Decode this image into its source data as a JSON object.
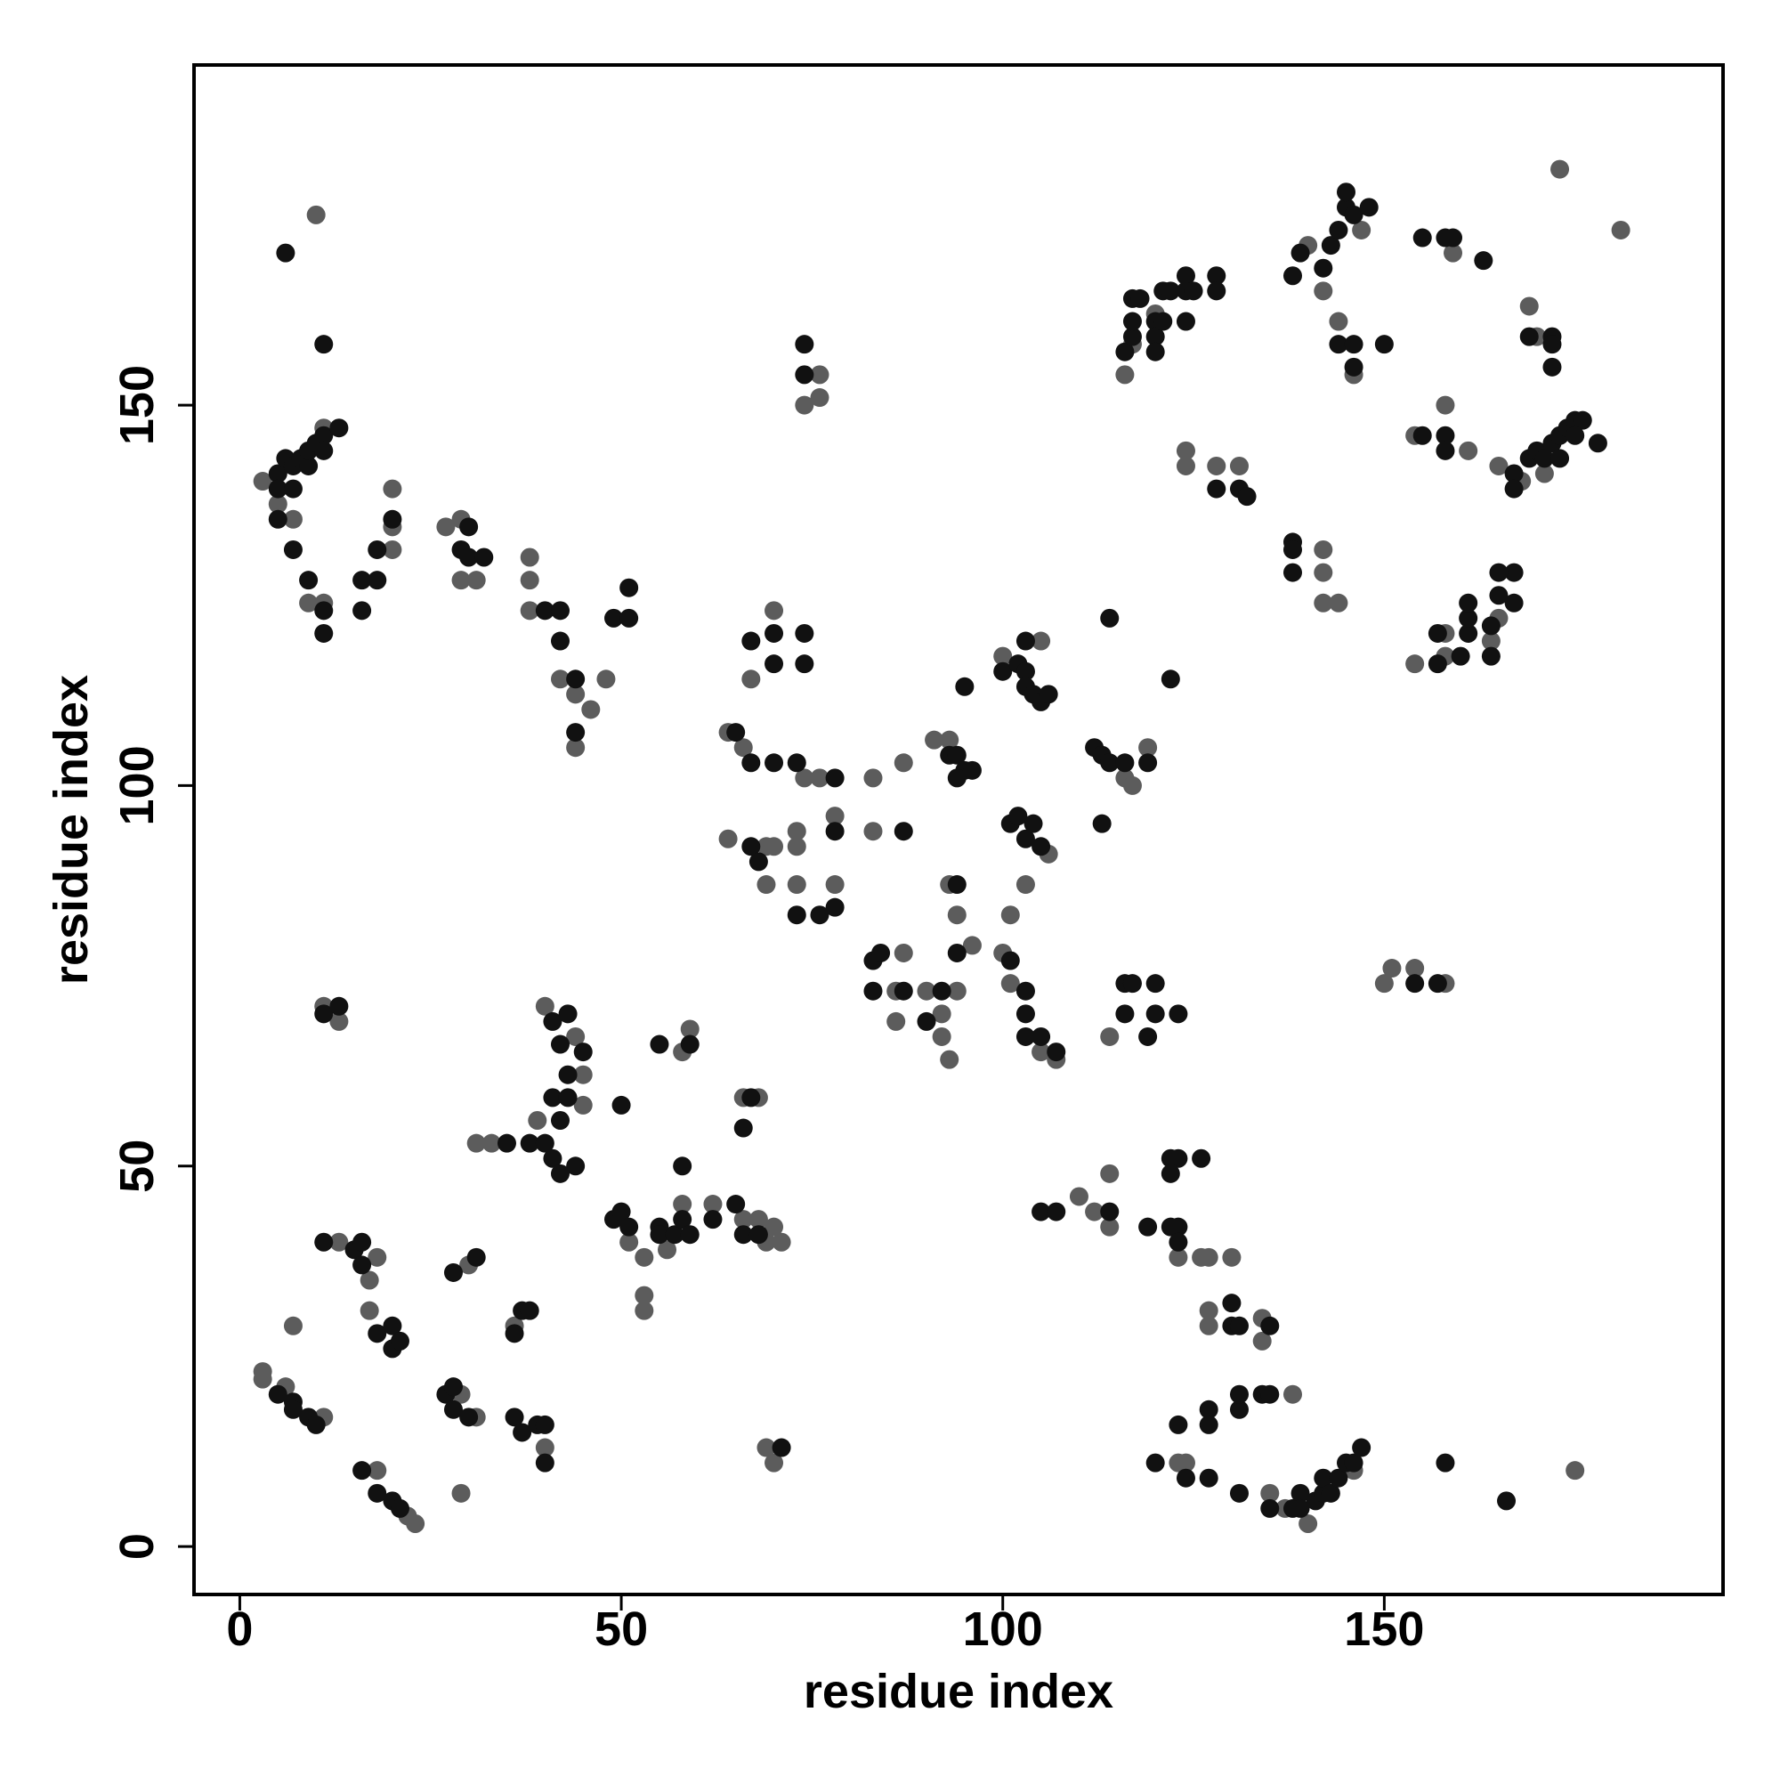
{
  "chart_data": {
    "type": "scatter",
    "x_label": "residue index",
    "y_label": "residue index",
    "xlim": [
      -6,
      194.4
    ],
    "ylim": [
      -6.3,
      194.7
    ],
    "xticks": [
      0,
      50,
      100,
      150
    ],
    "yticks": [
      0,
      50,
      100,
      150
    ],
    "grid": false,
    "series": [
      {
        "color": "#5c5c5c",
        "x": [
          3,
          3,
          6,
          11,
          7,
          13,
          18,
          17,
          17,
          18,
          22,
          23,
          29,
          31,
          29,
          30,
          36,
          40,
          31,
          33,
          39,
          40,
          44,
          45,
          45,
          51,
          53,
          53,
          53,
          56,
          58,
          58,
          59,
          62,
          66,
          68,
          69,
          70,
          71,
          66,
          68,
          69,
          70,
          64,
          66,
          74,
          76,
          78,
          78,
          73,
          73,
          73,
          69,
          69,
          70,
          64,
          67,
          70,
          76,
          74,
          76,
          83,
          87,
          83,
          87,
          86,
          86,
          90,
          92,
          92,
          93,
          94,
          93,
          94,
          96,
          91,
          93,
          100,
          105,
          106,
          103,
          101,
          100,
          101,
          105,
          107,
          116,
          117,
          119,
          114,
          110,
          112,
          114,
          114,
          123,
          126,
          127,
          130,
          127,
          127,
          134,
          134,
          138,
          123,
          124,
          135,
          137,
          140,
          146,
          175,
          150,
          151,
          154,
          158,
          154,
          158,
          158,
          164,
          165,
          142,
          142,
          142,
          144,
          124,
          124,
          128,
          131,
          116,
          117,
          120,
          140,
          147,
          142,
          144,
          146,
          159,
          169,
          170,
          173,
          181,
          154,
          158,
          161,
          165,
          168,
          171,
          3,
          5,
          7,
          11,
          9,
          11,
          10,
          11,
          13,
          20,
          20,
          20,
          27,
          29,
          29,
          31,
          38,
          38,
          38,
          42,
          44,
          44,
          46,
          48
        ],
        "values": [
          23,
          22,
          21,
          17,
          29,
          40,
          38,
          35,
          31,
          10,
          4,
          3,
          20,
          17,
          7,
          37,
          29,
          13,
          53,
          53,
          56,
          71,
          67,
          62,
          58,
          40,
          38,
          33,
          31,
          39,
          45,
          65,
          68,
          45,
          43,
          43,
          40,
          42,
          40,
          59,
          59,
          13,
          11,
          107,
          105,
          101,
          101,
          96,
          87,
          87,
          92,
          94,
          87,
          92,
          92,
          93,
          114,
          123,
          154,
          150,
          151,
          101,
          103,
          94,
          78,
          73,
          69,
          73,
          67,
          70,
          64,
          73,
          87,
          83,
          79,
          106,
          106,
          117,
          119,
          91,
          87,
          83,
          78,
          74,
          65,
          64,
          101,
          100,
          105,
          67,
          46,
          44,
          49,
          42,
          38,
          38,
          38,
          38,
          31,
          29,
          30,
          27,
          20,
          11,
          11,
          7,
          5,
          3,
          10,
          10,
          74,
          76,
          76,
          74,
          116,
          120,
          117,
          119,
          122,
          131,
          128,
          124,
          124,
          144,
          142,
          142,
          142,
          154,
          158,
          162,
          171,
          173,
          165,
          161,
          154,
          170,
          163,
          159,
          181,
          173,
          146,
          150,
          144,
          142,
          140,
          141,
          140,
          137,
          135,
          147,
          124,
          124,
          175,
          71,
          69,
          139,
          131,
          134,
          134,
          135,
          127,
          127,
          130,
          127,
          123,
          114,
          112,
          105,
          110,
          114
        ]
      },
      {
        "color": "#111111",
        "x": [
          5,
          7,
          7,
          9,
          10,
          11,
          15,
          16,
          16,
          18,
          20,
          20,
          21,
          16,
          18,
          20,
          21,
          27,
          28,
          28,
          30,
          28,
          31,
          36,
          37,
          38,
          36,
          37,
          39,
          40,
          40,
          35,
          38,
          40,
          41,
          42,
          43,
          41,
          42,
          44,
          41,
          42,
          43,
          45,
          43,
          50,
          49,
          50,
          51,
          55,
          55,
          57,
          58,
          59,
          58,
          55,
          59,
          62,
          65,
          66,
          68,
          67,
          66,
          71,
          65,
          67,
          70,
          73,
          78,
          78,
          78,
          76,
          73,
          67,
          68,
          67,
          70,
          70,
          74,
          74,
          74,
          74,
          87,
          83,
          84,
          83,
          87,
          90,
          92,
          94,
          94,
          93,
          94,
          95,
          96,
          94,
          95,
          100,
          102,
          103,
          103,
          104,
          105,
          106,
          103,
          101,
          102,
          103,
          104,
          105,
          101,
          103,
          103,
          103,
          105,
          107,
          112,
          113,
          114,
          116,
          119,
          113,
          114,
          122,
          116,
          117,
          116,
          120,
          120,
          119,
          123,
          105,
          107,
          114,
          119,
          122,
          123,
          122,
          126,
          122,
          123,
          123,
          130,
          130,
          131,
          135,
          123,
          127,
          127,
          131,
          131,
          134,
          135,
          120,
          124,
          127,
          131,
          135,
          138,
          139,
          139,
          141,
          142,
          142,
          143,
          144,
          145,
          146,
          147,
          158,
          166,
          154,
          157,
          157,
          157,
          160,
          161,
          161,
          161,
          164,
          164,
          165,
          167,
          167,
          165,
          138,
          138,
          138,
          128,
          131,
          132,
          116,
          117,
          117,
          118,
          117,
          120,
          120,
          120,
          121,
          121,
          122,
          124,
          124,
          124,
          125,
          128,
          128,
          138,
          139,
          142,
          143,
          144,
          145,
          146,
          148,
          145,
          144,
          146,
          146,
          150,
          155,
          158,
          159,
          163,
          169,
          172,
          172,
          172,
          155,
          158,
          158,
          167,
          167,
          169,
          170,
          171,
          172,
          173,
          174,
          175,
          176,
          175,
          173,
          178,
          5,
          5,
          5,
          6,
          7,
          7,
          7,
          8,
          9,
          9,
          10,
          11,
          11,
          13,
          9,
          11,
          11,
          11,
          6,
          11,
          13,
          16,
          16,
          18,
          18,
          20,
          30,
          29,
          30,
          32,
          40,
          42,
          42,
          44,
          44,
          49,
          51,
          51
        ],
        "values": [
          20,
          19,
          18,
          17,
          16,
          40,
          39,
          37,
          40,
          28,
          29,
          26,
          27,
          10,
          7,
          6,
          5,
          20,
          21,
          18,
          17,
          36,
          38,
          28,
          31,
          31,
          17,
          15,
          16,
          16,
          11,
          53,
          53,
          53,
          59,
          56,
          59,
          51,
          49,
          50,
          69,
          66,
          70,
          65,
          62,
          58,
          43,
          44,
          42,
          42,
          41,
          41,
          43,
          41,
          50,
          66,
          66,
          43,
          45,
          41,
          41,
          59,
          55,
          13,
          107,
          103,
          103,
          103,
          101,
          94,
          84,
          83,
          83,
          92,
          90,
          119,
          120,
          116,
          120,
          116,
          158,
          154,
          94,
          77,
          78,
          73,
          73,
          69,
          73,
          87,
          78,
          104,
          104,
          102,
          102,
          101,
          113,
          115,
          116,
          115,
          113,
          112,
          111,
          112,
          119,
          95,
          96,
          93,
          95,
          92,
          77,
          73,
          70,
          67,
          67,
          65,
          105,
          104,
          103,
          103,
          103,
          95,
          122,
          114,
          74,
          74,
          70,
          74,
          70,
          67,
          70,
          44,
          44,
          44,
          42,
          51,
          51,
          49,
          51,
          42,
          42,
          40,
          32,
          29,
          29,
          29,
          16,
          18,
          16,
          18,
          20,
          20,
          20,
          11,
          9,
          9,
          7,
          5,
          5,
          7,
          5,
          6,
          7,
          9,
          7,
          9,
          11,
          11,
          13,
          11,
          6,
          74,
          74,
          120,
          116,
          117,
          120,
          122,
          124,
          117,
          121,
          125,
          128,
          124,
          128,
          132,
          131,
          128,
          139,
          139,
          138,
          157,
          159,
          164,
          164,
          161,
          161,
          159,
          157,
          161,
          165,
          165,
          165,
          161,
          167,
          165,
          167,
          165,
          167,
          170,
          168,
          171,
          173,
          176,
          175,
          176,
          178,
          158,
          158,
          155,
          158,
          172,
          172,
          172,
          169,
          159,
          159,
          158,
          155,
          146,
          146,
          144,
          141,
          139,
          143,
          144,
          143,
          145,
          146,
          147,
          148,
          148,
          146,
          143,
          145,
          141,
          139,
          135,
          143,
          142,
          139,
          131,
          143,
          142,
          144,
          145,
          146,
          144,
          147,
          127,
          123,
          120,
          158,
          170,
          70,
          71,
          123,
          127,
          127,
          131,
          135,
          134,
          131,
          130,
          130,
          123,
          123,
          119,
          114,
          107,
          122,
          122,
          126
        ]
      }
    ]
  }
}
